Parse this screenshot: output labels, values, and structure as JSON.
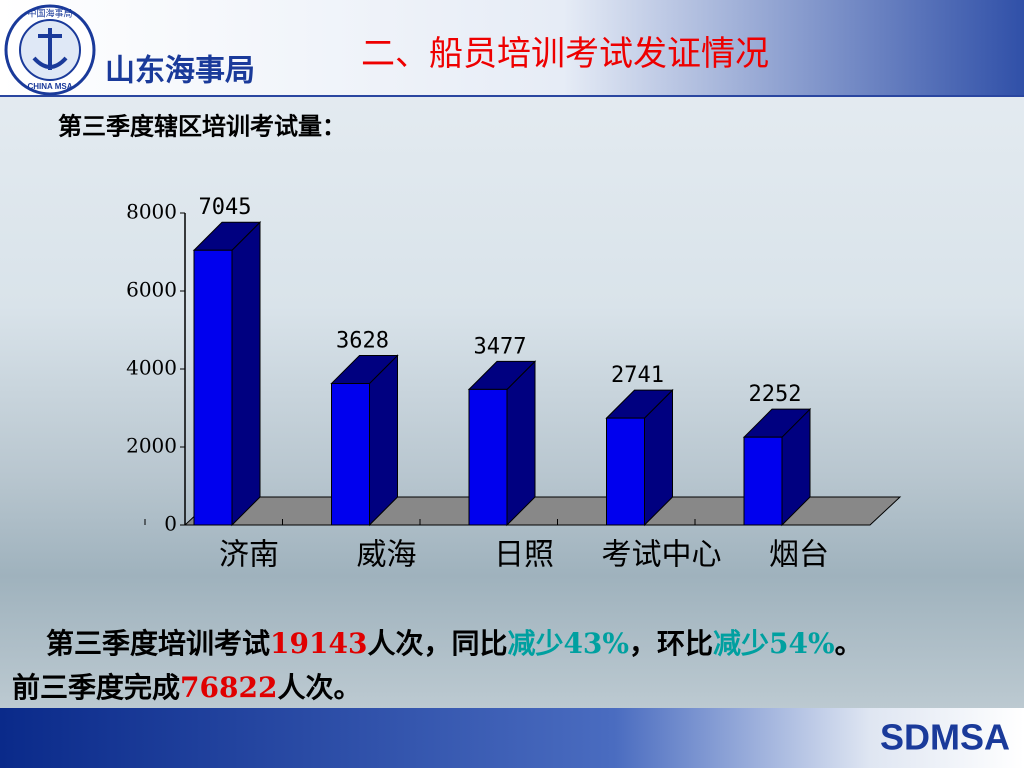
{
  "header": {
    "logo_text": "山东海事局",
    "seal_top": "中国海事局",
    "seal_bottom": "CHINA MSA",
    "title": "二、船员培训考试发证情况"
  },
  "chart_data": {
    "type": "bar3d",
    "title": "第三季度辖区培训考试量：",
    "categories": [
      "济南",
      "威海",
      "日照",
      "考试中心",
      "烟台"
    ],
    "values": [
      7045,
      3628,
      3477,
      2741,
      2252
    ],
    "color": "#0000ee",
    "side_color": "#000080",
    "ylim": [
      0,
      8000
    ],
    "yticks": [
      0,
      2000,
      4000,
      6000,
      8000
    ]
  },
  "summary": {
    "line1": [
      "第三季度培训考试",
      "19143",
      "人次，同比",
      "减少43%",
      "，环比",
      "减少54%",
      "。"
    ],
    "line2": [
      "前三季度完成",
      "76822",
      "人次。"
    ]
  },
  "footer": {
    "brand": "SDMSA"
  }
}
